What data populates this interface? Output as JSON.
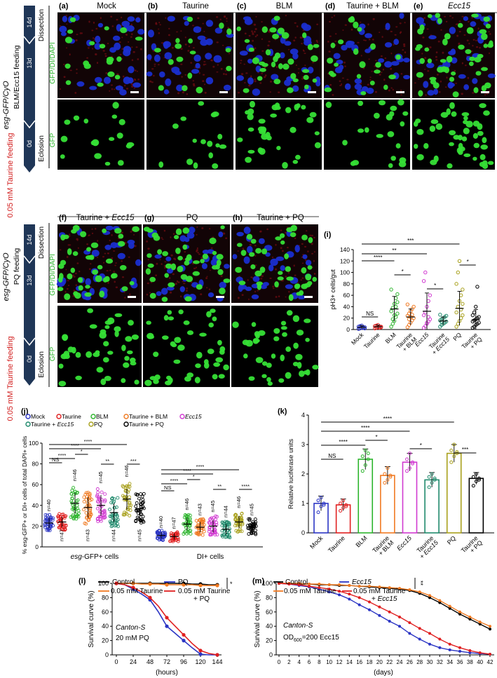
{
  "section1": {
    "sidebar_genotype": "esg-GFP/CyO",
    "sidebar_feeding": "BLM/Ecc15 feeding",
    "sidebar_taurine": "0.05 mM Taurine feeding",
    "timeline": [
      "0d",
      "13d",
      "14d"
    ],
    "timeline_events": [
      "Eclosion",
      "Dissection"
    ],
    "row_labels": [
      "GFP/DI/DAPI",
      "GFP"
    ],
    "panels": [
      {
        "letter": "(a)",
        "title": "Mock"
      },
      {
        "letter": "(b)",
        "title": "Taurine"
      },
      {
        "letter": "(c)",
        "title": "BLM"
      },
      {
        "letter": "(d)",
        "title": "Taurine + BLM"
      },
      {
        "letter": "(e)",
        "title": "Ecc15"
      }
    ]
  },
  "section2": {
    "sidebar_genotype": "esg-GFP/CyO",
    "sidebar_feeding": "PQ feeding",
    "sidebar_taurine": "0.05 mM Taurine feeding",
    "timeline": [
      "0d",
      "13d",
      "14d"
    ],
    "timeline_events": [
      "Eclosion",
      "Dissection"
    ],
    "row_labels": [
      "GFP/DI/DAPI",
      "GFP"
    ],
    "panels": [
      {
        "letter": "(f)",
        "title": "Taurine + Ecc15"
      },
      {
        "letter": "(g)",
        "title": "PQ"
      },
      {
        "letter": "(h)",
        "title": "Taurine + PQ"
      }
    ]
  },
  "colors": {
    "blue": "#2b35c4",
    "red": "#e02020",
    "green": "#2db52d",
    "orange": "#f07a22",
    "magenta": "#d13ad1",
    "teal": "#1f8a6c",
    "olive": "#a8a01c",
    "black": "#000000",
    "navy": "#1f3657",
    "dapi": "#1a2ecf",
    "gfp": "#36e036"
  },
  "chart_data": [
    {
      "panel": "(i)",
      "type": "scatter",
      "ylabel": "pH3+ cells/gut",
      "ylim": [
        0,
        140
      ],
      "yticks": [
        "0",
        "20",
        "40",
        "60",
        "80",
        "100",
        "120",
        "140"
      ],
      "categories": [
        "Mock",
        "Taurine",
        "BLM",
        "Taurine + BLM",
        "Ecc15",
        "Taurine + Ecc15",
        "PQ",
        "Taurine + PQ"
      ],
      "means": [
        4,
        5,
        36,
        22,
        32,
        15,
        37,
        17
      ],
      "sd": [
        3,
        3,
        22,
        14,
        32,
        7,
        30,
        18
      ],
      "points": [
        [
          1,
          2,
          3,
          4,
          4,
          5,
          6,
          7,
          3,
          2,
          5,
          6
        ],
        [
          2,
          3,
          4,
          5,
          5,
          6,
          7,
          8,
          3,
          4,
          6
        ],
        [
          5,
          10,
          15,
          22,
          28,
          32,
          38,
          45,
          55,
          62,
          70,
          18,
          25,
          40,
          48
        ],
        [
          4,
          8,
          12,
          16,
          20,
          24,
          28,
          32,
          36,
          40,
          44,
          18,
          22,
          26
        ],
        [
          3,
          6,
          10,
          14,
          18,
          25,
          30,
          40,
          50,
          60,
          85,
          100,
          12,
          22
        ],
        [
          5,
          8,
          10,
          12,
          14,
          16,
          18,
          20,
          22,
          24,
          26,
          13
        ],
        [
          5,
          10,
          15,
          20,
          25,
          30,
          40,
          50,
          60,
          70,
          80,
          100,
          120,
          35,
          45
        ],
        [
          3,
          5,
          8,
          10,
          12,
          14,
          16,
          18,
          20,
          22,
          25,
          30,
          40,
          75
        ]
      ],
      "significance": [
        {
          "label": "NS",
          "from": 0,
          "to": 1
        },
        {
          "label": "****",
          "from": 0,
          "to": 2
        },
        {
          "label": "*",
          "from": 2,
          "to": 3
        },
        {
          "label": "**",
          "from": 0,
          "to": 4
        },
        {
          "label": "*",
          "from": 4,
          "to": 5
        },
        {
          "label": "***",
          "from": 0,
          "to": 6
        },
        {
          "label": "*",
          "from": 6,
          "to": 7
        }
      ]
    },
    {
      "panel": "(j)",
      "type": "scatter",
      "ylabel": "% esg-GFP+ or DI+ cells of total DAPI+ cells",
      "ylim": [
        0,
        100
      ],
      "yticks": [
        "0",
        "20",
        "40",
        "60",
        "80",
        "100"
      ],
      "group_labels": [
        "esg-GFP+ cells",
        "DI+ cells"
      ],
      "legend": [
        "Mock",
        "Taurine",
        "BLM",
        "Taurine + BLM",
        "Ecc15",
        "Taurine + Ecc15",
        "PQ",
        "Taurine + PQ"
      ],
      "series": [
        {
          "name": "Mock",
          "esg": 23,
          "esg_sd": 5,
          "dl": 11,
          "dl_sd": 3,
          "n_esg": "n=40",
          "n_dl": "n=40"
        },
        {
          "name": "Taurine",
          "esg": 24,
          "esg_sd": 5,
          "dl": 10,
          "dl_sd": 3,
          "n_esg": "n=47",
          "n_dl": "n=47"
        },
        {
          "name": "BLM",
          "esg": 42,
          "esg_sd": 10,
          "dl": 22,
          "dl_sd": 6,
          "n_esg": "n=46",
          "n_dl": "n=46"
        },
        {
          "name": "Taurine + BLM",
          "esg": 38,
          "esg_sd": 10,
          "dl": 19,
          "dl_sd": 5,
          "n_esg": "n=43",
          "n_dl": "n=43"
        },
        {
          "name": "Ecc15",
          "esg": 40,
          "esg_sd": 10,
          "dl": 20,
          "dl_sd": 6,
          "n_esg": "n=45",
          "n_dl": "n=45"
        },
        {
          "name": "Taurine + Ecc15",
          "esg": 33,
          "esg_sd": 9,
          "dl": 17,
          "dl_sd": 5,
          "n_esg": "n=44",
          "n_dl": "n=44"
        },
        {
          "name": "PQ",
          "esg": 46,
          "esg_sd": 10,
          "dl": 24,
          "dl_sd": 6,
          "n_esg": "n=46",
          "n_dl": "n=46"
        },
        {
          "name": "Taurine + PQ",
          "esg": 37,
          "esg_sd": 9,
          "dl": 19,
          "dl_sd": 5,
          "n_esg": "n=45",
          "n_dl": "n=45"
        }
      ],
      "significance_esg": [
        {
          "label": "NS",
          "from": 0,
          "to": 1
        },
        {
          "label": "****",
          "from": 0,
          "to": 2
        },
        {
          "label": "****",
          "from": 0,
          "to": 4
        },
        {
          "label": "*",
          "from": 2,
          "to": 3
        },
        {
          "label": "**",
          "from": 4,
          "to": 5
        },
        {
          "label": "****",
          "from": 0,
          "to": 6
        },
        {
          "label": "***",
          "from": 6,
          "to": 7
        }
      ],
      "significance_dl": [
        {
          "label": "NS",
          "from": 0,
          "to": 1
        },
        {
          "label": "****",
          "from": 0,
          "to": 2
        },
        {
          "label": "****",
          "from": 0,
          "to": 4
        },
        {
          "label": "*",
          "from": 2,
          "to": 3
        },
        {
          "label": "**",
          "from": 4,
          "to": 5
        },
        {
          "label": "****",
          "from": 0,
          "to": 6
        },
        {
          "label": "****",
          "from": 6,
          "to": 7
        }
      ]
    },
    {
      "panel": "(k)",
      "type": "bar",
      "ylabel": "Relative luciferase units",
      "ylim": [
        0,
        4
      ],
      "yticks": [
        "0",
        "1",
        "2",
        "3",
        "4"
      ],
      "categories": [
        "Mock",
        "Taurine",
        "BLM",
        "Taurine + BLM",
        "Ecc15",
        "Taurine + Ecc15",
        "PQ",
        "Taurine + PQ"
      ],
      "values": [
        1.0,
        0.95,
        2.5,
        1.95,
        2.4,
        1.8,
        2.7,
        1.85
      ],
      "sd": [
        0.25,
        0.2,
        0.35,
        0.3,
        0.3,
        0.25,
        0.3,
        0.2
      ],
      "points": [
        [
          0.7,
          0.9,
          1.0,
          1.1,
          1.2,
          0.95
        ],
        [
          0.75,
          0.85,
          0.95,
          1.0,
          1.1,
          0.9
        ],
        [
          2.1,
          2.3,
          2.5,
          2.6,
          2.8,
          2.7
        ],
        [
          1.7,
          1.8,
          1.9,
          2.0,
          2.2,
          1.95
        ],
        [
          2.1,
          2.2,
          2.4,
          2.5,
          2.7,
          2.35
        ],
        [
          1.55,
          1.7,
          1.8,
          1.9,
          2.0,
          1.85
        ],
        [
          2.4,
          2.6,
          2.7,
          2.8,
          3.0,
          2.75
        ],
        [
          1.6,
          1.75,
          1.85,
          1.9,
          2.0,
          1.8
        ]
      ],
      "significance": [
        {
          "label": "NS",
          "from": 0,
          "to": 1
        },
        {
          "label": "****",
          "from": 0,
          "to": 2
        },
        {
          "label": "*",
          "from": 2,
          "to": 3
        },
        {
          "label": "****",
          "from": 0,
          "to": 4
        },
        {
          "label": "*",
          "from": 4,
          "to": 5
        },
        {
          "label": "****",
          "from": 0,
          "to": 6
        },
        {
          "label": "***",
          "from": 6,
          "to": 7
        }
      ]
    },
    {
      "panel": "(l)",
      "type": "line",
      "ylabel": "Survival curve (%)",
      "xlabel": "(hours)",
      "ylim": [
        0,
        100
      ],
      "yticks": [
        "0",
        "20",
        "40",
        "60",
        "80",
        "100"
      ],
      "xticks": [
        "0",
        "24",
        "48",
        "72",
        "96",
        "120",
        "144"
      ],
      "x": [
        0,
        12,
        24,
        36,
        48,
        60,
        72,
        84,
        96,
        108,
        120,
        132,
        144
      ],
      "annotation_strain": "Canton-S",
      "annotation_condition": "20 mM PQ",
      "legend_labels": [
        "Control",
        "PQ",
        "0.05 mM Taurine",
        "0.05 mM Taurine",
        "+ PQ"
      ],
      "sig": "*",
      "series": [
        {
          "name": "Control",
          "values": [
            100,
            100,
            100,
            100,
            100,
            100,
            100,
            100,
            100,
            99,
            99,
            98,
            98
          ]
        },
        {
          "name": "PQ",
          "values": [
            100,
            98,
            92,
            85,
            77,
            60,
            40,
            30,
            20,
            10,
            1,
            0,
            0
          ]
        },
        {
          "name": "0.05 mM Taurine",
          "values": [
            100,
            100,
            100,
            99,
            99,
            99,
            98,
            98,
            98,
            98,
            97,
            97,
            97
          ]
        },
        {
          "name": "0.05 mM Taurine + PQ",
          "values": [
            100,
            98,
            94,
            88,
            80,
            68,
            52,
            40,
            28,
            16,
            6,
            2,
            0
          ]
        }
      ]
    },
    {
      "panel": "(m)",
      "type": "line",
      "ylabel": "Survival curve (%)",
      "xlabel": "(days)",
      "ylim": [
        0,
        100
      ],
      "yticks": [
        "0",
        "20",
        "40",
        "60",
        "80",
        "100"
      ],
      "xticks": [
        "0",
        "2",
        "4",
        "6",
        "8",
        "10",
        "12",
        "14",
        "16",
        "18",
        "20",
        "22",
        "24",
        "26",
        "28",
        "30",
        "32",
        "34",
        "36",
        "38",
        "40",
        "42"
      ],
      "annotation_strain": "Canton-S",
      "annotation_od": "OD",
      "annotation_od_sub": "600",
      "annotation_od_rest": "=200 Ecc15",
      "legend_labels": [
        "Control",
        "Ecc15",
        "0.05 mM Taurine",
        "0.05 mM Taurine",
        "+ Ecc15"
      ],
      "sig": "**",
      "series": [
        {
          "name": "Control",
          "x": [
            0,
            2,
            4,
            6,
            8,
            10,
            12,
            14,
            16,
            18,
            20,
            22,
            24,
            26,
            28,
            30,
            32,
            34,
            36,
            38,
            40,
            42
          ],
          "values": [
            100,
            100,
            99,
            99,
            98,
            98,
            97,
            97,
            96,
            95,
            94,
            93,
            92,
            90,
            86,
            80,
            73,
            65,
            57,
            50,
            43,
            36
          ]
        },
        {
          "name": "Ecc15",
          "x": [
            0,
            2,
            4,
            6,
            8,
            10,
            12,
            14,
            16,
            18,
            20,
            22,
            24,
            26,
            28,
            30,
            32,
            34,
            36,
            38,
            40,
            42
          ],
          "values": [
            100,
            99,
            97,
            95,
            92,
            88,
            84,
            78,
            70,
            63,
            55,
            47,
            40,
            30,
            22,
            15,
            10,
            7,
            5,
            3,
            2,
            1
          ]
        },
        {
          "name": "0.05 mM Taurine",
          "x": [
            0,
            2,
            4,
            6,
            8,
            10,
            12,
            14,
            16,
            18,
            20,
            22,
            24,
            26,
            28,
            30,
            32,
            34,
            36,
            38,
            40,
            42
          ],
          "values": [
            100,
            100,
            100,
            99,
            99,
            98,
            98,
            97,
            96,
            96,
            95,
            94,
            93,
            91,
            88,
            83,
            76,
            68,
            60,
            53,
            46,
            40
          ]
        },
        {
          "name": "0.05 mM Taurine + Ecc15",
          "x": [
            0,
            2,
            4,
            6,
            8,
            10,
            12,
            14,
            16,
            18,
            20,
            22,
            24,
            26,
            28,
            30,
            32,
            34,
            36,
            38,
            40,
            42
          ],
          "values": [
            100,
            99,
            98,
            96,
            94,
            92,
            89,
            85,
            80,
            74,
            67,
            60,
            53,
            45,
            37,
            30,
            22,
            15,
            10,
            6,
            3,
            1
          ]
        }
      ]
    }
  ]
}
